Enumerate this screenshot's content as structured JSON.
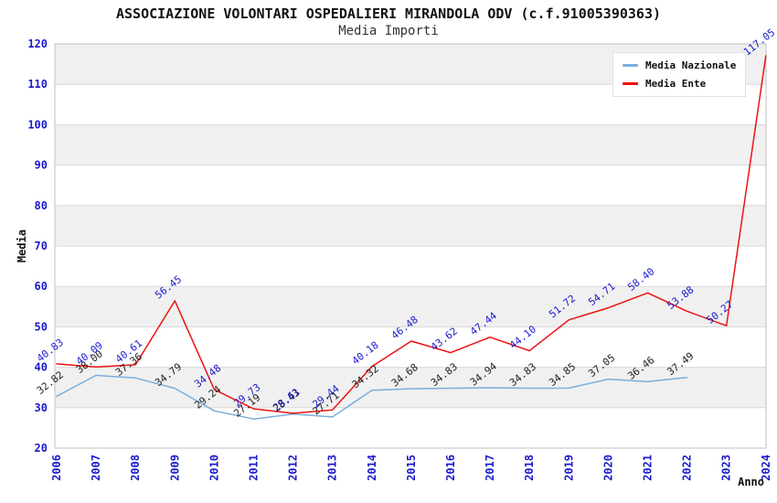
{
  "header": {
    "title": "ASSOCIAZIONE VOLONTARI OSPEDALIERI MIRANDOLA ODV (c.f.91005390363)",
    "subtitle": "Media Importi"
  },
  "legend": {
    "items": [
      {
        "label": "Media Nazionale",
        "color": "#7aaede"
      },
      {
        "label": "Media Ente",
        "color": "#ee1111"
      }
    ]
  },
  "axes": {
    "y_title": "Media",
    "x_title": "Anno",
    "y_ticks": [
      20,
      30,
      40,
      50,
      60,
      70,
      80,
      90,
      100,
      110,
      120
    ],
    "x_ticks": [
      "2006",
      "2007",
      "2008",
      "2009",
      "2010",
      "2011",
      "2012",
      "2013",
      "2014",
      "2015",
      "2016",
      "2017",
      "2018",
      "2019",
      "2020",
      "2021",
      "2022",
      "2023",
      "2024"
    ]
  },
  "colors": {
    "axis_tick_text": "#1a1acc",
    "axis_title_text": "#111111",
    "grid_stripe": "#f0f0f0",
    "gridline": "#d8d8d8",
    "plot_border": "#c0c0c0",
    "media_nazionale_line": "#7aaede",
    "media_ente_line": "#ee1111",
    "media_nazionale_label": "#222222",
    "media_ente_label": "#1a1acc"
  },
  "chart_data": {
    "type": "line",
    "title": "ASSOCIAZIONE VOLONTARI OSPEDALIERI MIRANDOLA ODV (c.f.91005390363)",
    "subtitle": "Media Importi",
    "xlabel": "Anno",
    "ylabel": "Media",
    "ylim": [
      20,
      120
    ],
    "grid": true,
    "legend_position": "top-right",
    "categories": [
      2006,
      2007,
      2008,
      2009,
      2010,
      2011,
      2012,
      2013,
      2014,
      2015,
      2016,
      2017,
      2018,
      2019,
      2020,
      2021,
      2022,
      2023,
      2024
    ],
    "series": [
      {
        "name": "Media Nazionale",
        "color": "#7aaede",
        "label_color": "#222222",
        "values": [
          32.82,
          38.0,
          37.36,
          34.79,
          29.24,
          27.19,
          28.43,
          27.71,
          34.32,
          34.68,
          34.83,
          34.94,
          34.83,
          34.85,
          37.05,
          36.46,
          37.49,
          null,
          null
        ],
        "labels": [
          "32.82",
          "38.00",
          "37.36",
          "34.79",
          "29.24",
          "27.19",
          "28.43",
          "27.71",
          "34.32",
          "34.68",
          "34.83",
          "34.94",
          "34.83",
          "34.85",
          "37.05",
          "36.46",
          "37.49",
          "",
          ""
        ]
      },
      {
        "name": "Media Ente",
        "color": "#ee1111",
        "label_color": "#1a1acc",
        "values": [
          40.83,
          40.09,
          40.61,
          56.45,
          34.48,
          29.73,
          28.61,
          29.44,
          40.18,
          46.48,
          43.62,
          47.44,
          44.1,
          51.72,
          54.71,
          58.4,
          53.88,
          50.27,
          117.05
        ],
        "labels": [
          "40.83",
          "40.09",
          "40.61",
          "56.45",
          "34.48",
          "29.73",
          "28.61",
          "29.44",
          "40.18",
          "46.48",
          "43.62",
          "47.44",
          "44.10",
          "51.72",
          "54.71",
          "58.40",
          "53.88",
          "50.27",
          "117.05"
        ]
      }
    ]
  }
}
